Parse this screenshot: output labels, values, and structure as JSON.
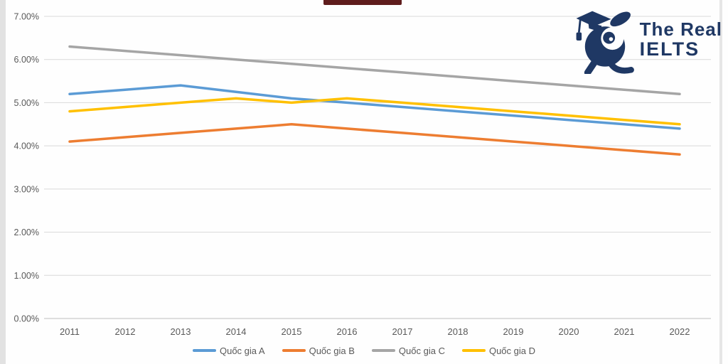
{
  "header": {
    "cropped_title_bar_color": "#5f1d1d"
  },
  "logo": {
    "line1": "The Real",
    "line2": "IELTS",
    "color": "#1F3864",
    "mascot": "graduate-mascot-icon"
  },
  "chart_data": {
    "type": "line",
    "title": "",
    "categories": [
      "2011",
      "2012",
      "2013",
      "2014",
      "2015",
      "2016",
      "2017",
      "2018",
      "2019",
      "2020",
      "2021",
      "2022"
    ],
    "series": [
      {
        "name": "Quốc gia A",
        "color": "#5B9BD5",
        "values": [
          5.2,
          5.3,
          5.4,
          5.25,
          5.1,
          5.0,
          4.9,
          4.8,
          4.7,
          4.6,
          4.5,
          4.4
        ]
      },
      {
        "name": "Quốc gia B",
        "color": "#ED7D31",
        "values": [
          4.1,
          4.2,
          4.3,
          4.4,
          4.5,
          4.4,
          4.3,
          4.2,
          4.1,
          4.0,
          3.9,
          3.8
        ]
      },
      {
        "name": "Quốc gia C",
        "color": "#A5A5A5",
        "values": [
          6.3,
          6.2,
          6.1,
          6.0,
          5.9,
          5.8,
          5.7,
          5.6,
          5.5,
          5.4,
          5.3,
          5.2
        ]
      },
      {
        "name": "Quốc gia D",
        "color": "#FFC000",
        "values": [
          4.8,
          4.9,
          5.0,
          5.1,
          5.0,
          5.1,
          5.0,
          4.9,
          4.8,
          4.7,
          4.6,
          4.5
        ]
      }
    ],
    "y_axis": {
      "min": 0,
      "max": 7,
      "tick_values": [
        7,
        6,
        5,
        4,
        3,
        2,
        1,
        0
      ],
      "tick_labels": [
        "7.00%",
        "6.00%",
        "5.00%",
        "4.00%",
        "3.00%",
        "2.00%",
        "1.00%",
        "0.00%"
      ]
    },
    "xlabel": "",
    "ylabel": "",
    "grid": true,
    "grid_color": "#D9D9D9",
    "axis_line_color": "#BFBFBF",
    "axis_text_color": "#595959",
    "legend_position": "bottom"
  }
}
